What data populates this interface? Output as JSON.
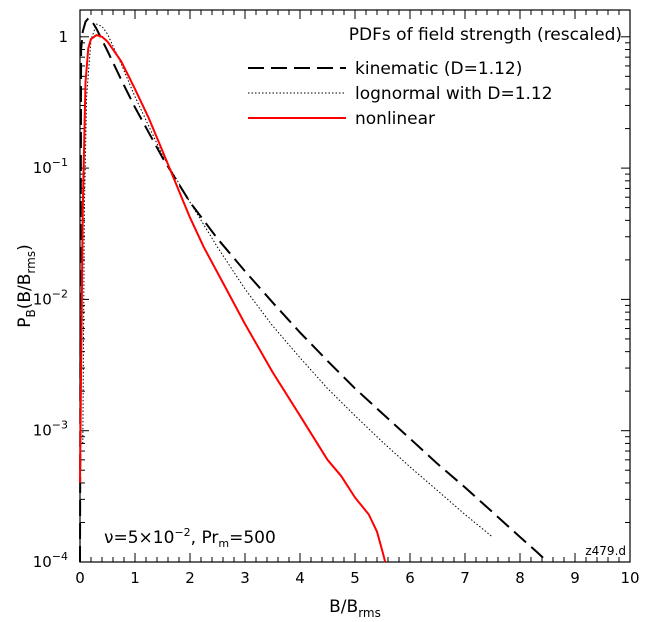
{
  "chart_data": {
    "type": "line",
    "title": "PDFs of field strength (rescaled)",
    "xlabel": {
      "main": "B/B",
      "sub": "rms"
    },
    "ylabel": {
      "main": "P",
      "sub": "B",
      "paren_main": "(B/B",
      "paren_sub": "rms",
      "close": ")"
    },
    "xlim": [
      0,
      10
    ],
    "ylim": [
      0.0001,
      1.6
    ],
    "yscale": "log",
    "x_ticks": [
      "0",
      "1",
      "2",
      "3",
      "4",
      "5",
      "6",
      "7",
      "8",
      "9",
      "10"
    ],
    "y_ticks": [
      {
        "value": 1,
        "mant": "1",
        "exp": ""
      },
      {
        "value": 0.1,
        "mant": "10",
        "exp": "−1"
      },
      {
        "value": 0.01,
        "mant": "10",
        "exp": "−2"
      },
      {
        "value": 0.001,
        "mant": "10",
        "exp": "−3"
      },
      {
        "value": 0.0001,
        "mant": "10",
        "exp": "−4"
      }
    ],
    "annotation": {
      "nu": "ν=5×10",
      "exp": "−2",
      "pr": ", Pr",
      "pr_sub": "m",
      "pr_val": "=500"
    },
    "corner_label": "z479.d",
    "series": [
      {
        "name": "kinematic (D=1.12)",
        "color": "#000000",
        "style": "dashed",
        "x": [
          0.0,
          0.02,
          0.05,
          0.1,
          0.15,
          0.2,
          0.3,
          0.5,
          0.75,
          1.0,
          1.5,
          2.0,
          2.5,
          3.0,
          3.5,
          4.0,
          4.5,
          5.0,
          5.5,
          6.0,
          6.5,
          7.0,
          7.5,
          8.0,
          8.3,
          8.5
        ],
        "y": [
          0.0,
          0.8,
          1.1,
          1.3,
          1.38,
          1.35,
          1.15,
          0.78,
          0.47,
          0.29,
          0.12,
          0.055,
          0.029,
          0.0164,
          0.0095,
          0.0056,
          0.0034,
          0.0021,
          0.00135,
          0.00087,
          0.00056,
          0.00037,
          0.00024,
          0.000155,
          0.00012,
          0.0001
        ]
      },
      {
        "name": "lognormal with D=1.12",
        "color": "#000000",
        "style": "dotted",
        "x": [
          0.05,
          0.08,
          0.12,
          0.2,
          0.3,
          0.4,
          0.5,
          0.75,
          1.0,
          1.5,
          2.0,
          2.5,
          3.0,
          3.5,
          4.0,
          4.5,
          5.0,
          5.5,
          6.0,
          6.5,
          7.0,
          7.5
        ],
        "y": [
          0.0008,
          0.05,
          0.35,
          0.95,
          1.25,
          1.2,
          1.05,
          0.62,
          0.35,
          0.125,
          0.055,
          0.025,
          0.012,
          0.0063,
          0.0036,
          0.0021,
          0.0013,
          0.00082,
          0.00053,
          0.00035,
          0.00023,
          0.000155
        ]
      },
      {
        "name": "nonlinear",
        "color": "#ff0000",
        "style": "solid",
        "x": [
          0.0,
          0.02,
          0.05,
          0.1,
          0.15,
          0.2,
          0.3,
          0.4,
          0.5,
          0.75,
          1.0,
          1.25,
          1.5,
          1.75,
          2.0,
          2.25,
          2.5,
          3.0,
          3.5,
          4.0,
          4.5,
          4.75,
          5.0,
          5.25,
          5.4,
          5.5,
          5.55
        ],
        "y": [
          0.0004,
          0.003,
          0.05,
          0.45,
          0.82,
          0.96,
          1.03,
          1.0,
          0.92,
          0.65,
          0.4,
          0.24,
          0.135,
          0.075,
          0.042,
          0.025,
          0.016,
          0.0065,
          0.0028,
          0.0013,
          0.0006,
          0.00045,
          0.00031,
          0.00023,
          0.00017,
          0.00012,
          0.0001
        ]
      }
    ],
    "legend_position": "top-right"
  }
}
